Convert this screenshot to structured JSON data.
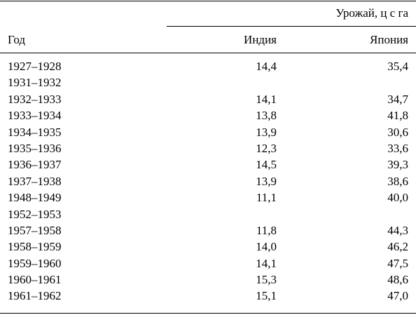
{
  "table": {
    "span_header": "Урожай, ц с га",
    "col_year": "Год",
    "col_india": "Индия",
    "col_japan": "Япония",
    "rows": [
      {
        "year": "1927–1928",
        "india": "14,4",
        "japan": "35,4"
      },
      {
        "year": "1931–1932",
        "india": "",
        "japan": ""
      },
      {
        "year": "1932–1933",
        "india": "14,1",
        "japan": "34,7"
      },
      {
        "year": "1933–1934",
        "india": "13,8",
        "japan": "41,8"
      },
      {
        "year": "1934–1935",
        "india": "13,9",
        "japan": "30,6"
      },
      {
        "year": "1935–1936",
        "india": "12,3",
        "japan": "33,6"
      },
      {
        "year": "1936–1937",
        "india": "14,5",
        "japan": "39,3"
      },
      {
        "year": "1937–1938",
        "india": "13,9",
        "japan": "38,6"
      },
      {
        "year": "1948–1949",
        "india": "11,1",
        "japan": "40,0"
      },
      {
        "year": "1952–1953",
        "india": "",
        "japan": ""
      },
      {
        "year": "1957–1958",
        "india": "11,8",
        "japan": "44,3"
      },
      {
        "year": "1958–1959",
        "india": "14,0",
        "japan": "46,2"
      },
      {
        "year": "1959–1960",
        "india": "14,1",
        "japan": "47,5"
      },
      {
        "year": "1960–1961",
        "india": "15,3",
        "japan": "48,6"
      },
      {
        "year": "1961–1962",
        "india": "15,1",
        "japan": "47,0"
      }
    ]
  }
}
